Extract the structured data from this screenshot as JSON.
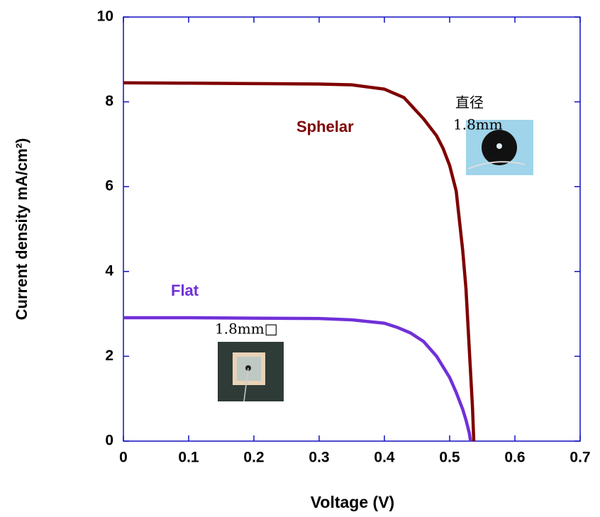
{
  "chart_data": {
    "type": "line",
    "x_label": "Voltage (V)",
    "y_label": "Current density mA/cm²)",
    "xlim": [
      0,
      0.7
    ],
    "xticks": [
      0,
      0.1,
      0.2,
      0.3,
      0.4,
      0.5,
      0.6,
      0.7
    ],
    "ylim": [
      0,
      10
    ],
    "yticks": [
      0,
      2,
      4,
      6,
      8,
      10
    ],
    "series": [
      {
        "name": "Sphelar",
        "color": "#800000",
        "x": [
          0,
          0.1,
          0.2,
          0.3,
          0.35,
          0.4,
          0.43,
          0.46,
          0.48,
          0.49,
          0.5,
          0.51,
          0.52,
          0.525,
          0.53,
          0.535,
          0.537
        ],
        "values": [
          8.45,
          8.44,
          8.43,
          8.42,
          8.4,
          8.3,
          8.1,
          7.6,
          7.2,
          6.9,
          6.5,
          5.9,
          4.5,
          3.6,
          2.2,
          0.8,
          0
        ]
      },
      {
        "name": "Flat",
        "color": "#7030d8",
        "x": [
          0,
          0.1,
          0.2,
          0.3,
          0.35,
          0.4,
          0.42,
          0.44,
          0.46,
          0.48,
          0.5,
          0.51,
          0.52,
          0.525,
          0.53,
          0.532
        ],
        "values": [
          2.91,
          2.91,
          2.9,
          2.89,
          2.86,
          2.78,
          2.68,
          2.55,
          2.35,
          2.0,
          1.5,
          1.15,
          0.75,
          0.5,
          0.2,
          0
        ]
      }
    ],
    "annotations": [
      "直径",
      "1.8mm",
      "1.8mm□"
    ]
  }
}
